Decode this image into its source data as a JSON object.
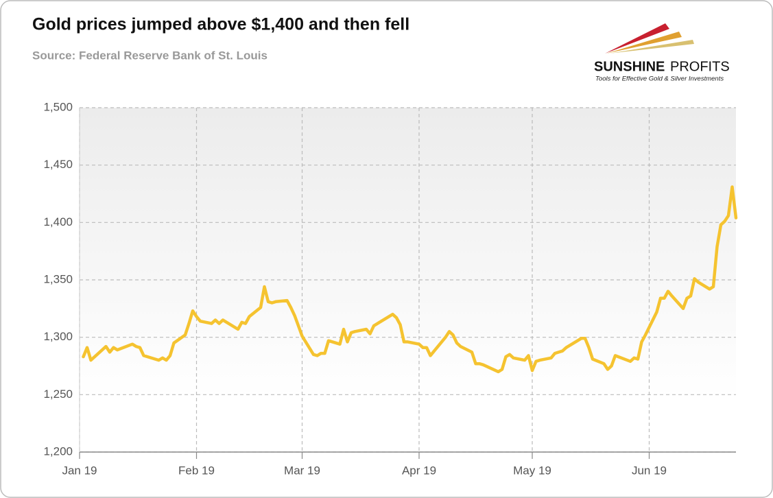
{
  "chart_data": {
    "type": "line",
    "title": "Gold prices jumped above $1,400 and then fell",
    "subtitle": "Source: Federal Reserve Bank of St. Louis",
    "color": "#f5c330",
    "grid": true,
    "xlim": [
      0,
      174
    ],
    "xticks": [
      {
        "value": 0,
        "label": "Jan 19"
      },
      {
        "value": 31,
        "label": "Feb 19"
      },
      {
        "value": 59,
        "label": "Mar 19"
      },
      {
        "value": 90,
        "label": "Apr 19"
      },
      {
        "value": 120,
        "label": "May 19"
      },
      {
        "value": 151,
        "label": "Jun 19"
      }
    ],
    "ylim": [
      1200,
      1500
    ],
    "yticks": [
      {
        "value": 1200,
        "label": "1,200"
      },
      {
        "value": 1250,
        "label": "1,250"
      },
      {
        "value": 1300,
        "label": "1,300"
      },
      {
        "value": 1350,
        "label": "1,350"
      },
      {
        "value": 1400,
        "label": "1,400"
      },
      {
        "value": 1450,
        "label": "1,450"
      },
      {
        "value": 1500,
        "label": "1,500"
      }
    ],
    "x": [
      1,
      2,
      3,
      7,
      8,
      9,
      10,
      14,
      15,
      16,
      17,
      21,
      22,
      23,
      24,
      25,
      28,
      29,
      30,
      31,
      32,
      35,
      36,
      37,
      38,
      42,
      43,
      44,
      45,
      48,
      49,
      50,
      51,
      52,
      55,
      56,
      57,
      58,
      59,
      62,
      63,
      64,
      65,
      66,
      69,
      70,
      71,
      72,
      73,
      76,
      77,
      78,
      79,
      80,
      83,
      84,
      85,
      86,
      87,
      90,
      91,
      92,
      93,
      94,
      97,
      98,
      99,
      100,
      101,
      104,
      105,
      106,
      107,
      111,
      112,
      113,
      114,
      115,
      118,
      119,
      120,
      121,
      122,
      125,
      126,
      127,
      128,
      129,
      132,
      133,
      134,
      135,
      136,
      139,
      140,
      141,
      142,
      146,
      147,
      148,
      149,
      150,
      153,
      154,
      155,
      156,
      157,
      160,
      161,
      162,
      163,
      164,
      167,
      168,
      169,
      170,
      171,
      172,
      173,
      174
    ],
    "values": [
      1283,
      1291,
      1280,
      1292,
      1287,
      1291,
      1289,
      1294,
      1292,
      1291,
      1284,
      1280,
      1282,
      1280,
      1284,
      1295,
      1302,
      1312,
      1323,
      1318,
      1314,
      1312,
      1315,
      1312,
      1315,
      1307,
      1313,
      1312,
      1318,
      1326,
      1344,
      1331,
      1330,
      1331,
      1332,
      1326,
      1319,
      1310,
      1301,
      1285,
      1284,
      1286,
      1286,
      1297,
      1294,
      1307,
      1296,
      1304,
      1305,
      1307,
      1303,
      1310,
      1312,
      1314,
      1320,
      1317,
      1311,
      1296,
      1296,
      1294,
      1291,
      1291,
      1284,
      1288,
      1300,
      1305,
      1302,
      1295,
      1292,
      1287,
      1277,
      1277,
      1276,
      1270,
      1272,
      1283,
      1285,
      1282,
      1280,
      1284,
      1271,
      1279,
      1280,
      1282,
      1286,
      1287,
      1288,
      1291,
      1297,
      1299,
      1299,
      1291,
      1281,
      1277,
      1272,
      1275,
      1284,
      1279,
      1282,
      1281,
      1296,
      1302,
      1322,
      1334,
      1334,
      1340,
      1336,
      1325,
      1334,
      1336,
      1351,
      1348,
      1342,
      1344,
      1379,
      1398,
      1401,
      1406,
      1431,
      1404
    ]
  },
  "logo": {
    "name": "SUNSHINE",
    "name2": "PROFITS",
    "tagline": "Tools for Effective Gold & Silver Investments"
  }
}
